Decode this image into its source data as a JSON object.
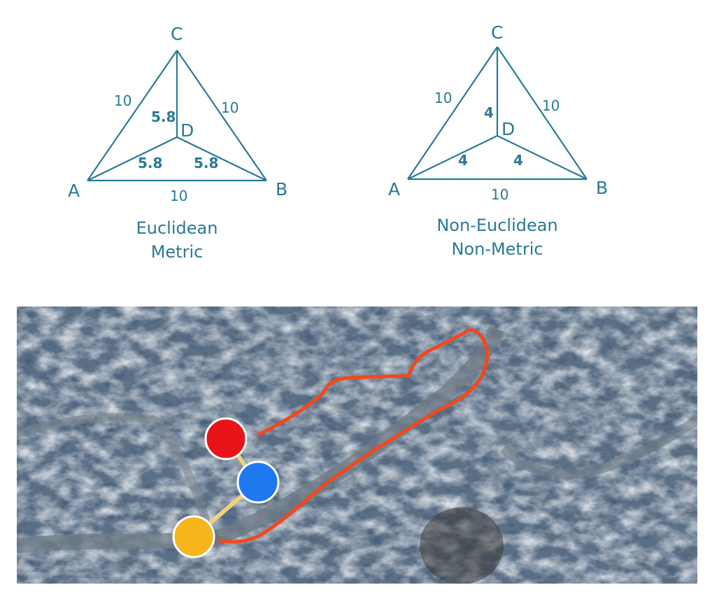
{
  "diagrams": [
    {
      "vertices": {
        "A": "A",
        "B": "B",
        "C": "C",
        "D": "D"
      },
      "edges": {
        "AB": "10",
        "AC": "10",
        "BC": "10"
      },
      "center_distances": {
        "DC": "5.8",
        "DA": "5.8",
        "DB": "5.8"
      },
      "caption": [
        "Euclidean",
        "Metric"
      ]
    },
    {
      "vertices": {
        "A": "A",
        "B": "B",
        "C": "C",
        "D": "D"
      },
      "edges": {
        "AB": "10",
        "AC": "10",
        "BC": "10"
      },
      "center_distances": {
        "DC": "4",
        "DA": "4",
        "DB": "4"
      },
      "caption": [
        "Non-Euclidean",
        "Non-Metric"
      ]
    }
  ],
  "terrain_map": {
    "markers": [
      {
        "name": "red-marker",
        "color": "#e8141a"
      },
      {
        "name": "blue-marker",
        "color": "#1f78f0"
      },
      {
        "name": "yellow-marker",
        "color": "#f7b51c"
      }
    ],
    "path_color": "#f2481c",
    "link_color": "#f3d27a"
  }
}
